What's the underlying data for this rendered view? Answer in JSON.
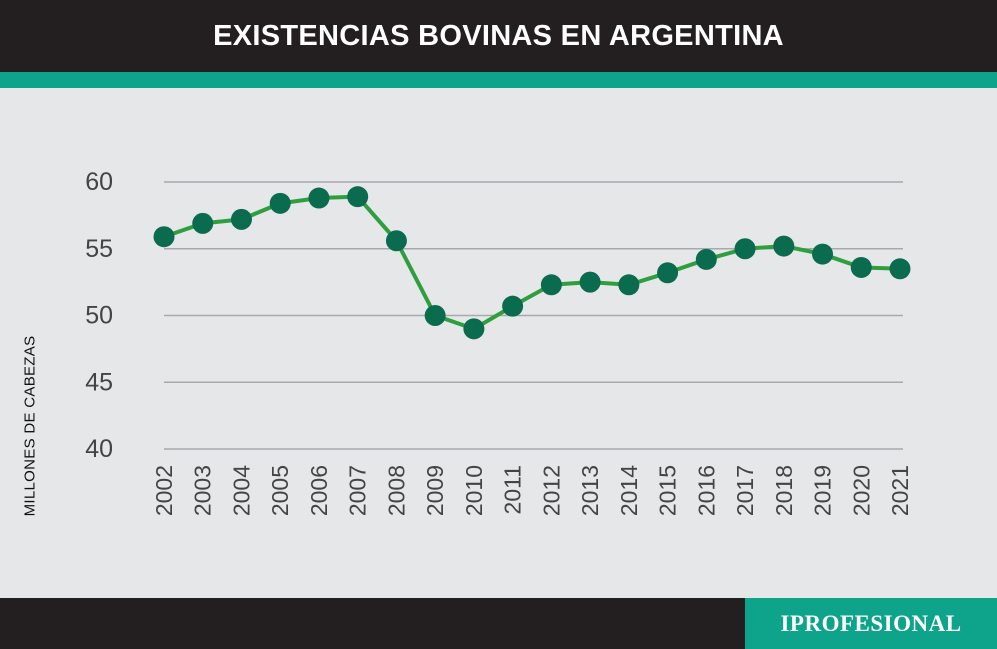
{
  "header": {
    "title": "EXISTENCIAS BOVINAS EN ARGENTINA"
  },
  "brand": {
    "name": "IPROFESIONAL"
  },
  "colors": {
    "header_bg": "#231f20",
    "accent": "#0ea38b",
    "background": "#e6e7e8",
    "line": "#2e9e3f",
    "marker": "#0b6b4e",
    "grid": "#a7a9ac"
  },
  "chart_data": {
    "type": "line",
    "title": "EXISTENCIAS BOVINAS EN ARGENTINA",
    "xlabel": "",
    "ylabel": "MILLONES  DE CABEZAS",
    "categories": [
      "2002",
      "2003",
      "2004",
      "2005",
      "2006",
      "2007",
      "2008",
      "2009",
      "2010",
      "2011",
      "2012",
      "2013",
      "2014",
      "2015",
      "2016",
      "2017",
      "2018",
      "2019",
      "2020",
      "2021"
    ],
    "values": [
      55.9,
      56.9,
      57.2,
      58.4,
      58.8,
      58.9,
      55.6,
      50.0,
      49.0,
      50.7,
      52.3,
      52.5,
      52.3,
      53.2,
      54.2,
      55.0,
      55.2,
      54.6,
      53.6,
      53.5
    ],
    "yticks": [
      40,
      45,
      50,
      55,
      60
    ],
    "ylim": [
      40,
      60
    ],
    "grid": true,
    "legend": "none"
  }
}
